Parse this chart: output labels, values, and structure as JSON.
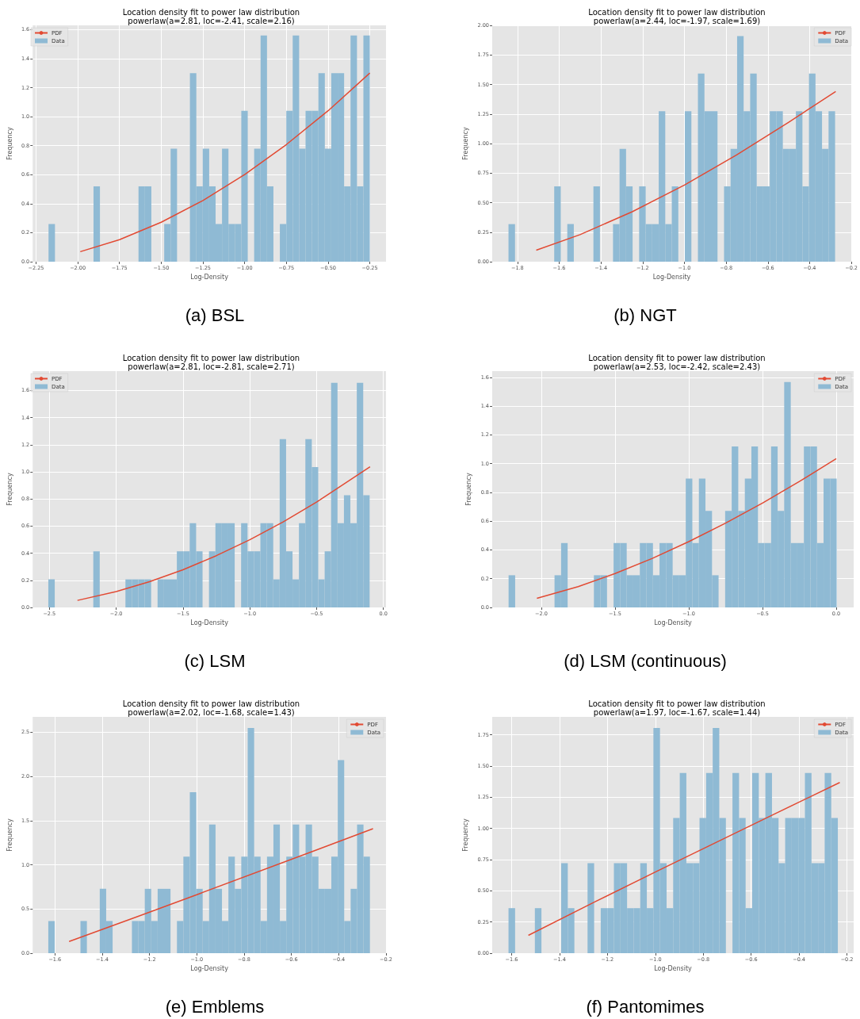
{
  "chart_data": [
    {
      "type": "histogram",
      "title": "Location density fit to power law distribution",
      "subtitle": "powerlaw(a=2.81, loc=-2.41, scale=2.16)",
      "xlabel": "Log-Density",
      "ylabel": "Frequency",
      "annotations": [
        "(a) BSL"
      ],
      "legend": "top left",
      "grid": true,
      "marker": "none",
      "xlim": [
        -2.27,
        -0.153
      ],
      "ylim": [
        0,
        1.63
      ],
      "xticks": [
        {
          "value": -2.25,
          "label": "−2.25"
        },
        {
          "value": -2.0,
          "label": "−2.00"
        },
        {
          "value": -1.75,
          "label": "−1.75"
        },
        {
          "value": -1.5,
          "label": "−1.50"
        },
        {
          "value": -1.25,
          "label": "−1.25"
        },
        {
          "value": -1.0,
          "label": "−1.00"
        },
        {
          "value": -0.75,
          "label": "−0.75"
        },
        {
          "value": -0.5,
          "label": "−0.50"
        },
        {
          "value": -0.25,
          "label": "−0.25"
        }
      ],
      "yticks": [
        {
          "value": 0,
          "label": "0.0"
        },
        {
          "value": 0.2,
          "label": "0.2"
        },
        {
          "value": 0.4,
          "label": "0.4"
        },
        {
          "value": 0.6,
          "label": "0.6"
        },
        {
          "value": 0.8,
          "label": "0.8"
        },
        {
          "value": 1.0,
          "label": "1.0"
        },
        {
          "value": 1.2,
          "label": "1.2"
        },
        {
          "value": 1.4,
          "label": "1.4"
        },
        {
          "value": 1.6,
          "label": "1.6"
        }
      ],
      "series": [
        {
          "name": "PDF",
          "type": "line",
          "color": "#e24a33",
          "x": [
            -1.985,
            -1.75,
            -1.5,
            -1.25,
            -1.0,
            -0.75,
            -0.5,
            -0.25
          ],
          "values": [
            0.069,
            0.152,
            0.272,
            0.422,
            0.601,
            0.808,
            1.041,
            1.301
          ]
        },
        {
          "name": "Data",
          "color": "#8fbad4",
          "bins": [
            -2.175,
            -2.1365,
            -2.098,
            -2.0595,
            -2.021,
            -1.9825,
            -1.944,
            -1.9055,
            -1.867,
            -1.8285,
            -1.79,
            -1.7515,
            -1.713,
            -1.6745,
            -1.636,
            -1.5975,
            -1.559,
            -1.5205,
            -1.482,
            -1.4435,
            -1.405,
            -1.3665,
            -1.328,
            -1.2895,
            -1.251,
            -1.2125,
            -1.174,
            -1.1355,
            -1.097,
            -1.0585,
            -1.02,
            -0.9815,
            -0.943,
            -0.9045,
            -0.866,
            -0.8275,
            -0.789,
            -0.7505,
            -0.712,
            -0.6735,
            -0.635,
            -0.5965,
            -0.558,
            -0.5195,
            -0.481,
            -0.4425,
            -0.404,
            -0.3655,
            -0.327,
            -0.2885,
            -0.25
          ],
          "values": [
            0.26,
            0,
            0,
            0,
            0,
            0,
            0,
            0.52,
            0,
            0,
            0,
            0,
            0,
            0,
            0.52,
            0.52,
            0,
            0,
            0.26,
            0.78,
            0,
            0,
            1.3,
            0.52,
            0.78,
            0.52,
            0.26,
            0.78,
            0.26,
            0.26,
            1.04,
            0,
            0.78,
            1.56,
            0.52,
            0,
            0.26,
            1.04,
            1.56,
            0.78,
            1.04,
            1.04,
            1.3,
            0.78,
            1.3,
            1.3,
            0.52,
            1.56,
            0.52,
            1.56
          ]
        }
      ]
    },
    {
      "type": "histogram",
      "title": "Location density fit to power law distribution",
      "subtitle": "powerlaw(a=2.44, loc=-1.97, scale=1.69)",
      "xlabel": "Log-Density",
      "ylabel": "Frequency",
      "annotations": [
        "(b) NGT"
      ],
      "legend": "top right",
      "grid": true,
      "marker": "none",
      "xlim": [
        -1.921,
        -0.2
      ],
      "ylim": [
        0,
        2.0
      ],
      "xticks": [
        {
          "value": -1.8,
          "label": "−1.8"
        },
        {
          "value": -1.6,
          "label": "−1.6"
        },
        {
          "value": -1.4,
          "label": "−1.4"
        },
        {
          "value": -1.2,
          "label": "−1.2"
        },
        {
          "value": -1.0,
          "label": "−1.0"
        },
        {
          "value": -0.8,
          "label": "−0.8"
        },
        {
          "value": -0.6,
          "label": "−0.6"
        },
        {
          "value": -0.4,
          "label": "−0.4"
        },
        {
          "value": -0.2,
          "label": "−0.2"
        }
      ],
      "yticks": [
        {
          "value": 0,
          "label": "0.00"
        },
        {
          "value": 0.25,
          "label": "0.25"
        },
        {
          "value": 0.5,
          "label": "0.50"
        },
        {
          "value": 0.75,
          "label": "0.75"
        },
        {
          "value": 1.0,
          "label": "1.00"
        },
        {
          "value": 1.25,
          "label": "1.25"
        },
        {
          "value": 1.5,
          "label": "1.50"
        },
        {
          "value": 1.75,
          "label": "1.75"
        },
        {
          "value": 2.0,
          "label": "2.00"
        }
      ],
      "series": [
        {
          "name": "PDF",
          "type": "line",
          "color": "#e24a33",
          "x": [
            -1.71,
            -1.5,
            -1.25,
            -1.0,
            -0.75,
            -0.5,
            -0.275
          ],
          "values": [
            0.097,
            0.229,
            0.423,
            0.649,
            0.903,
            1.181,
            1.44
          ]
        },
        {
          "name": "Data",
          "color": "#8fbad4",
          "bins": [
            -1.843,
            -1.8117,
            -1.7804,
            -1.7491,
            -1.7178,
            -1.6865,
            -1.6552,
            -1.6239,
            -1.5926,
            -1.5613,
            -1.53,
            -1.4987,
            -1.4674,
            -1.4361,
            -1.4048,
            -1.3735,
            -1.3422,
            -1.3109,
            -1.2796,
            -1.2483,
            -1.217,
            -1.1857,
            -1.1544,
            -1.1231,
            -1.0918,
            -1.0605,
            -1.0292,
            -0.9979,
            -0.9666,
            -0.9353,
            -0.904,
            -0.8727,
            -0.8414,
            -0.8101,
            -0.7788,
            -0.7475,
            -0.7162,
            -0.6849,
            -0.6536,
            -0.6223,
            -0.591,
            -0.5597,
            -0.5284,
            -0.4971,
            -0.4658,
            -0.4345,
            -0.4032,
            -0.3719,
            -0.3406,
            -0.3093,
            -0.278
          ],
          "values": [
            0.318,
            0,
            0,
            0,
            0,
            0,
            0,
            0.637,
            0,
            0.318,
            0,
            0,
            0,
            0.637,
            0,
            0,
            0.318,
            0.955,
            0.637,
            0,
            0.637,
            0.318,
            0.318,
            1.273,
            0.318,
            0.637,
            0,
            1.273,
            0,
            1.592,
            1.273,
            1.273,
            0,
            0.637,
            0.955,
            1.91,
            1.273,
            1.592,
            0.637,
            0.637,
            1.273,
            1.273,
            0.955,
            0.955,
            1.273,
            0.637,
            1.592,
            1.273,
            0.955,
            1.273
          ]
        }
      ]
    },
    {
      "type": "histogram",
      "title": "Location density fit to power law distribution",
      "subtitle": "powerlaw(a=2.81, loc=-2.81, scale=2.71)",
      "xlabel": "Log-Density",
      "ylabel": "Frequency",
      "annotations": [
        "(c) LSM"
      ],
      "legend": "top left",
      "grid": true,
      "marker": "none",
      "xlim": [
        -2.625,
        0.0195
      ],
      "ylim": [
        0,
        1.743
      ],
      "xticks": [
        {
          "value": -2.5,
          "label": "−2.5"
        },
        {
          "value": -2.0,
          "label": "−2.0"
        },
        {
          "value": -1.5,
          "label": "−1.5"
        },
        {
          "value": -1.0,
          "label": "−1.0"
        },
        {
          "value": -0.5,
          "label": "−0.5"
        },
        {
          "value": 0,
          "label": "0.0"
        }
      ],
      "yticks": [
        {
          "value": 0,
          "label": "0.0"
        },
        {
          "value": 0.2,
          "label": "0.2"
        },
        {
          "value": 0.4,
          "label": "0.4"
        },
        {
          "value": 0.6,
          "label": "0.6"
        },
        {
          "value": 0.8,
          "label": "0.8"
        },
        {
          "value": 1.0,
          "label": "1.0"
        },
        {
          "value": 1.2,
          "label": "1.2"
        },
        {
          "value": 1.4,
          "label": "1.4"
        },
        {
          "value": 1.6,
          "label": "1.6"
        }
      ],
      "series": [
        {
          "name": "PDF",
          "type": "line",
          "color": "#e24a33",
          "x": [
            -2.29,
            -2.0,
            -1.75,
            -1.5,
            -1.25,
            -1.0,
            -0.75,
            -0.5,
            -0.1
          ],
          "values": [
            0.052,
            0.117,
            0.19,
            0.278,
            0.382,
            0.499,
            0.631,
            0.777,
            1.037
          ]
        },
        {
          "name": "Data",
          "color": "#8fbad4",
          "bins": [
            -2.508,
            -2.4599,
            -2.4118,
            -2.3637,
            -2.3156,
            -2.2675,
            -2.2194,
            -2.1713,
            -2.1232,
            -2.0751,
            -2.027,
            -1.9789,
            -1.9308,
            -1.8827,
            -1.8346,
            -1.7865,
            -1.7384,
            -1.6903,
            -1.6422,
            -1.5941,
            -1.546,
            -1.4979,
            -1.4498,
            -1.4017,
            -1.3536,
            -1.3055,
            -1.2574,
            -1.2093,
            -1.1612,
            -1.1131,
            -1.065,
            -1.0169,
            -0.9688,
            -0.9207,
            -0.8726,
            -0.8245,
            -0.7764,
            -0.7283,
            -0.6802,
            -0.6321,
            -0.584,
            -0.5359,
            -0.4878,
            -0.4397,
            -0.3916,
            -0.3435,
            -0.2954,
            -0.2473,
            -0.1992,
            -0.1511,
            -0.103
          ],
          "values": [
            0.207,
            0,
            0,
            0,
            0,
            0,
            0,
            0.414,
            0,
            0,
            0,
            0,
            0.207,
            0.207,
            0.207,
            0.207,
            0,
            0.207,
            0.207,
            0.207,
            0.414,
            0.414,
            0.621,
            0.414,
            0,
            0.414,
            0.621,
            0.621,
            0.621,
            0,
            0.621,
            0.414,
            0.414,
            0.621,
            0.621,
            0.207,
            1.242,
            0.414,
            0.207,
            0.621,
            1.242,
            1.035,
            0.207,
            0.414,
            1.656,
            0.621,
            0.828,
            0.621,
            1.656,
            0.828
          ]
        }
      ]
    },
    {
      "type": "histogram",
      "title": "Location density fit to power law distribution",
      "subtitle": "powerlaw(a=2.53, loc=-2.42, scale=2.43)",
      "xlabel": "Log-Density",
      "ylabel": "Frequency",
      "annotations": [
        "(d) LSM (continuous)"
      ],
      "legend": "top right",
      "grid": true,
      "marker": "none",
      "xlim": [
        -2.333,
        0.118
      ],
      "ylim": [
        0,
        1.644
      ],
      "xticks": [
        {
          "value": -2.0,
          "label": "−2.0"
        },
        {
          "value": -1.5,
          "label": "−1.5"
        },
        {
          "value": -1.0,
          "label": "−1.0"
        },
        {
          "value": -0.5,
          "label": "−0.5"
        },
        {
          "value": 0,
          "label": "0.0"
        }
      ],
      "yticks": [
        {
          "value": 0,
          "label": "0.0"
        },
        {
          "value": 0.2,
          "label": "0.2"
        },
        {
          "value": 0.4,
          "label": "0.4"
        },
        {
          "value": 0.6,
          "label": "0.6"
        },
        {
          "value": 0.8,
          "label": "0.8"
        },
        {
          "value": 1.0,
          "label": "1.0"
        },
        {
          "value": 1.2,
          "label": "1.2"
        },
        {
          "value": 1.4,
          "label": "1.4"
        },
        {
          "value": 1.6,
          "label": "1.6"
        }
      ],
      "series": [
        {
          "name": "PDF",
          "type": "line",
          "color": "#e24a33",
          "x": [
            -2.03,
            -1.75,
            -1.5,
            -1.25,
            -1.0,
            -0.75,
            -0.5,
            -0.25,
            0.0
          ],
          "values": [
            0.063,
            0.145,
            0.236,
            0.34,
            0.458,
            0.587,
            0.726,
            0.876,
            1.035
          ]
        },
        {
          "name": "Data",
          "color": "#8fbad4",
          "bins": [
            -2.222,
            -2.1775,
            -2.133,
            -2.0885,
            -2.044,
            -1.9995,
            -1.955,
            -1.9105,
            -1.866,
            -1.8215,
            -1.777,
            -1.7325,
            -1.688,
            -1.6435,
            -1.599,
            -1.5545,
            -1.51,
            -1.4655,
            -1.421,
            -1.3765,
            -1.332,
            -1.2875,
            -1.243,
            -1.1985,
            -1.154,
            -1.1095,
            -1.065,
            -1.0205,
            -0.976,
            -0.9315,
            -0.887,
            -0.8425,
            -0.798,
            -0.7535,
            -0.709,
            -0.6645,
            -0.62,
            -0.5755,
            -0.531,
            -0.4865,
            -0.442,
            -0.3975,
            -0.353,
            -0.3085,
            -0.264,
            -0.2195,
            -0.175,
            -0.1305,
            -0.086,
            -0.0415,
            0.003
          ],
          "values": [
            0.224,
            0,
            0,
            0,
            0,
            0,
            0,
            0.224,
            0.448,
            0,
            0,
            0,
            0,
            0.224,
            0.224,
            0,
            0.448,
            0.448,
            0.224,
            0.224,
            0.448,
            0.448,
            0.224,
            0.448,
            0.448,
            0.224,
            0.224,
            0.896,
            0.448,
            0.896,
            0.672,
            0.224,
            0,
            0.672,
            1.12,
            0.672,
            0.896,
            1.12,
            0.448,
            0.448,
            1.12,
            0.672,
            1.568,
            0.448,
            0.448,
            1.12,
            1.12,
            0.448,
            0.896,
            0.896
          ]
        }
      ]
    },
    {
      "type": "histogram",
      "title": "Location density fit to power law distribution",
      "subtitle": "powerlaw(a=2.02, loc=-1.68, scale=1.43)",
      "xlabel": "Log-Density",
      "ylabel": "Frequency",
      "annotations": [
        "(e) Emblems"
      ],
      "legend": "top right",
      "grid": true,
      "marker": "none",
      "xlim": [
        -1.694,
        -0.2
      ],
      "ylim": [
        0,
        2.673
      ],
      "xticks": [
        {
          "value": -1.6,
          "label": "−1.6"
        },
        {
          "value": -1.4,
          "label": "−1.4"
        },
        {
          "value": -1.2,
          "label": "−1.2"
        },
        {
          "value": -1.0,
          "label": "−1.0"
        },
        {
          "value": -0.8,
          "label": "−0.8"
        },
        {
          "value": -0.6,
          "label": "−0.6"
        },
        {
          "value": -0.4,
          "label": "−0.4"
        },
        {
          "value": -0.2,
          "label": "−0.2"
        }
      ],
      "yticks": [
        {
          "value": 0,
          "label": "0.0"
        },
        {
          "value": 0.5,
          "label": "0.5"
        },
        {
          "value": 1.0,
          "label": "1.0"
        },
        {
          "value": 1.5,
          "label": "1.5"
        },
        {
          "value": 2.0,
          "label": "2.0"
        },
        {
          "value": 2.5,
          "label": "2.5"
        }
      ],
      "series": [
        {
          "name": "PDF",
          "type": "line",
          "color": "#e24a33",
          "x": [
            -1.54,
            -1.25,
            -1.0,
            -0.5,
            -0.255
          ],
          "values": [
            0.132,
            0.415,
            0.662,
            1.161,
            1.408
          ]
        },
        {
          "name": "Data",
          "color": "#8fbad4",
          "bins": [
            -1.628,
            -1.6008,
            -1.5736,
            -1.5464,
            -1.5192,
            -1.492,
            -1.4648,
            -1.4376,
            -1.4104,
            -1.3832,
            -1.356,
            -1.3288,
            -1.3016,
            -1.2744,
            -1.2472,
            -1.22,
            -1.1928,
            -1.1656,
            -1.1384,
            -1.1112,
            -1.084,
            -1.0568,
            -1.0296,
            -1.0024,
            -0.9752,
            -0.948,
            -0.9208,
            -0.8936,
            -0.8664,
            -0.8392,
            -0.812,
            -0.7848,
            -0.7576,
            -0.7304,
            -0.7032,
            -0.676,
            -0.6488,
            -0.6216,
            -0.5944,
            -0.5672,
            -0.54,
            -0.5128,
            -0.4856,
            -0.4584,
            -0.4312,
            -0.404,
            -0.3768,
            -0.3496,
            -0.3224,
            -0.2952,
            -0.268
          ],
          "values": [
            0.364,
            0,
            0,
            0,
            0,
            0.364,
            0,
            0,
            0.728,
            0.364,
            0,
            0,
            0,
            0.364,
            0.364,
            0.728,
            0.364,
            0.728,
            0.728,
            0,
            0.364,
            1.092,
            1.82,
            0.728,
            0.364,
            1.456,
            0.728,
            0.364,
            1.092,
            0.728,
            1.092,
            2.548,
            1.092,
            0.364,
            1.092,
            1.456,
            0.364,
            1.092,
            1.456,
            1.092,
            1.456,
            1.092,
            0.728,
            0.728,
            1.092,
            2.184,
            0.364,
            0.728,
            1.456,
            1.092
          ]
        }
      ]
    },
    {
      "type": "histogram",
      "title": "Location density fit to power law distribution",
      "subtitle": "powerlaw(a=1.97, loc=-1.67, scale=1.44)",
      "xlabel": "Log-Density",
      "ylabel": "Frequency",
      "annotations": [
        "(f) Pantomimes"
      ],
      "legend": "top right",
      "grid": true,
      "marker": "none",
      "xlim": [
        -1.681,
        -0.172
      ],
      "ylim": [
        0,
        1.894
      ],
      "xticks": [
        {
          "value": -1.6,
          "label": "−1.6"
        },
        {
          "value": -1.4,
          "label": "−1.4"
        },
        {
          "value": -1.2,
          "label": "−1.2"
        },
        {
          "value": -1.0,
          "label": "−1.0"
        },
        {
          "value": -0.8,
          "label": "−0.8"
        },
        {
          "value": -0.6,
          "label": "−0.6"
        },
        {
          "value": -0.4,
          "label": "−0.4"
        },
        {
          "value": -0.2,
          "label": "−0.2"
        }
      ],
      "yticks": [
        {
          "value": 0,
          "label": "0.00"
        },
        {
          "value": 0.25,
          "label": "0.25"
        },
        {
          "value": 0.5,
          "label": "0.50"
        },
        {
          "value": 0.75,
          "label": "0.75"
        },
        {
          "value": 1.0,
          "label": "1.00"
        },
        {
          "value": 1.25,
          "label": "1.25"
        },
        {
          "value": 1.5,
          "label": "1.50"
        },
        {
          "value": 1.75,
          "label": "1.75"
        }
      ],
      "series": [
        {
          "name": "PDF",
          "type": "line",
          "color": "#e24a33",
          "x": [
            -1.53,
            -1.25,
            -1.0,
            -0.5,
            -0.23
          ],
          "values": [
            0.143,
            0.414,
            0.651,
            1.118,
            1.368
          ]
        },
        {
          "name": "Data",
          "color": "#8fbad4",
          "bins": [
            -1.613,
            -1.5855,
            -1.558,
            -1.5305,
            -1.503,
            -1.4755,
            -1.448,
            -1.4205,
            -1.393,
            -1.3655,
            -1.338,
            -1.3105,
            -1.283,
            -1.2555,
            -1.228,
            -1.2005,
            -1.173,
            -1.1455,
            -1.118,
            -1.0905,
            -1.063,
            -1.0355,
            -1.008,
            -0.9805,
            -0.953,
            -0.9255,
            -0.898,
            -0.8705,
            -0.843,
            -0.8155,
            -0.788,
            -0.7605,
            -0.733,
            -0.7055,
            -0.678,
            -0.6505,
            -0.623,
            -0.5955,
            -0.568,
            -0.5405,
            -0.513,
            -0.4855,
            -0.458,
            -0.4305,
            -0.403,
            -0.3755,
            -0.348,
            -0.3205,
            -0.293,
            -0.2655,
            -0.238
          ],
          "values": [
            0.361,
            0,
            0,
            0,
            0.361,
            0,
            0,
            0,
            0.722,
            0.361,
            0,
            0,
            0.722,
            0,
            0.361,
            0.361,
            0.722,
            0.722,
            0.361,
            0.361,
            0.722,
            0.361,
            1.805,
            0.722,
            0.361,
            1.083,
            1.444,
            0.722,
            0.722,
            1.083,
            1.444,
            1.805,
            1.083,
            0,
            1.444,
            1.083,
            0.361,
            1.444,
            1.083,
            1.444,
            1.083,
            0.722,
            1.083,
            1.083,
            1.083,
            1.444,
            0.722,
            0.722,
            1.444,
            1.083
          ]
        }
      ]
    }
  ]
}
